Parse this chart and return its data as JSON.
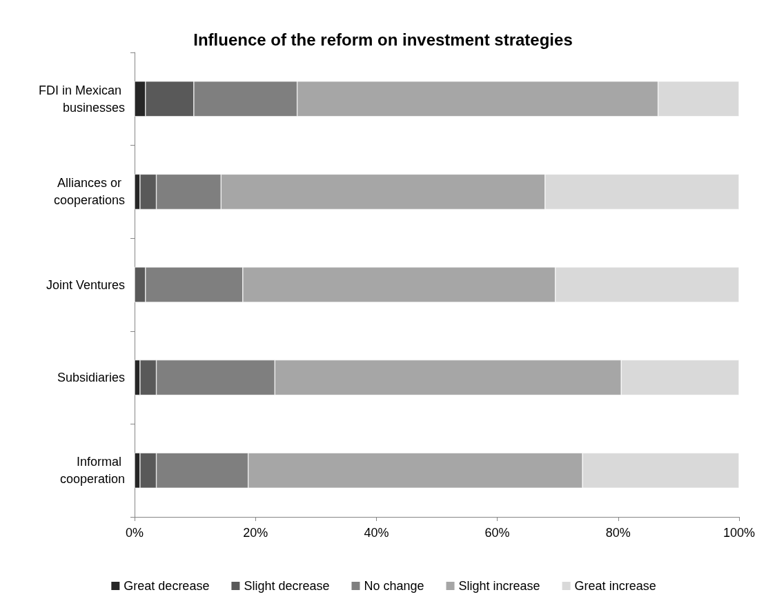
{
  "chart_data": {
    "type": "bar",
    "orientation": "horizontal",
    "stacked": true,
    "title": "Influence of the reform on investment strategies",
    "categories": [
      "FDI in Mexican businesses",
      "Alliances or cooperations",
      "Joint Ventures",
      "Subsidiaries",
      "Informal cooperation"
    ],
    "series": [
      {
        "name": "Great decrease",
        "color": "#262626",
        "values": [
          1.8,
          0.9,
          0,
          0.9,
          0.9
        ]
      },
      {
        "name": "Slight decrease",
        "color": "#595959",
        "values": [
          8.0,
          2.7,
          1.8,
          2.7,
          2.7
        ]
      },
      {
        "name": "No change",
        "color": "#7f7f7f",
        "values": [
          17.1,
          10.7,
          16.1,
          19.6,
          15.2
        ]
      },
      {
        "name": "Slight increase",
        "color": "#a6a6a6",
        "values": [
          59.7,
          53.6,
          51.7,
          57.3,
          55.3
        ]
      },
      {
        "name": "Great increase",
        "color": "#d9d9d9",
        "values": [
          13.4,
          32.1,
          30.4,
          19.5,
          25.9
        ]
      }
    ],
    "xlim": [
      0,
      100
    ],
    "xticks": [
      {
        "value": 0,
        "label": "0%"
      },
      {
        "value": 20,
        "label": "20%"
      },
      {
        "value": 40,
        "label": "40%"
      },
      {
        "value": 60,
        "label": "60%"
      },
      {
        "value": 80,
        "label": "80%"
      },
      {
        "value": 100,
        "label": "100%"
      }
    ],
    "grid": false,
    "legend": "bottom"
  }
}
